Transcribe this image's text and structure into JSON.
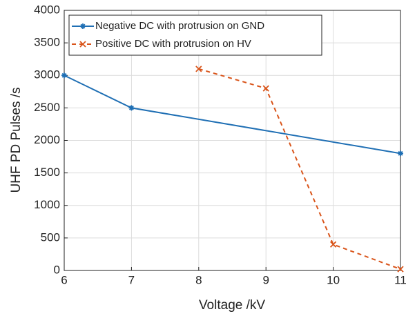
{
  "chart_data": {
    "type": "line",
    "xlabel": "Voltage /kV",
    "ylabel": "UHF PD Pulses /s",
    "xlim": [
      6,
      11
    ],
    "xticks": [
      6,
      7,
      8,
      9,
      10,
      11
    ],
    "ylim": [
      0,
      4000
    ],
    "yticks": [
      0,
      500,
      1000,
      1500,
      2000,
      2500,
      3000,
      3500,
      4000
    ],
    "grid": true,
    "legend": "upper left",
    "series": [
      {
        "name": "Negative DC with protrusion on GND",
        "color": "#1f6fb4",
        "linestyle": "solid",
        "marker": "asterisk",
        "x": [
          6,
          7,
          11
        ],
        "values": [
          3000,
          2500,
          1800
        ]
      },
      {
        "name": "Positive DC with protrusion on HV",
        "color": "#d9541a",
        "linestyle": "dashed",
        "marker": "x",
        "x": [
          8,
          9,
          10,
          11
        ],
        "values": [
          3100,
          2800,
          400,
          20
        ]
      }
    ]
  }
}
